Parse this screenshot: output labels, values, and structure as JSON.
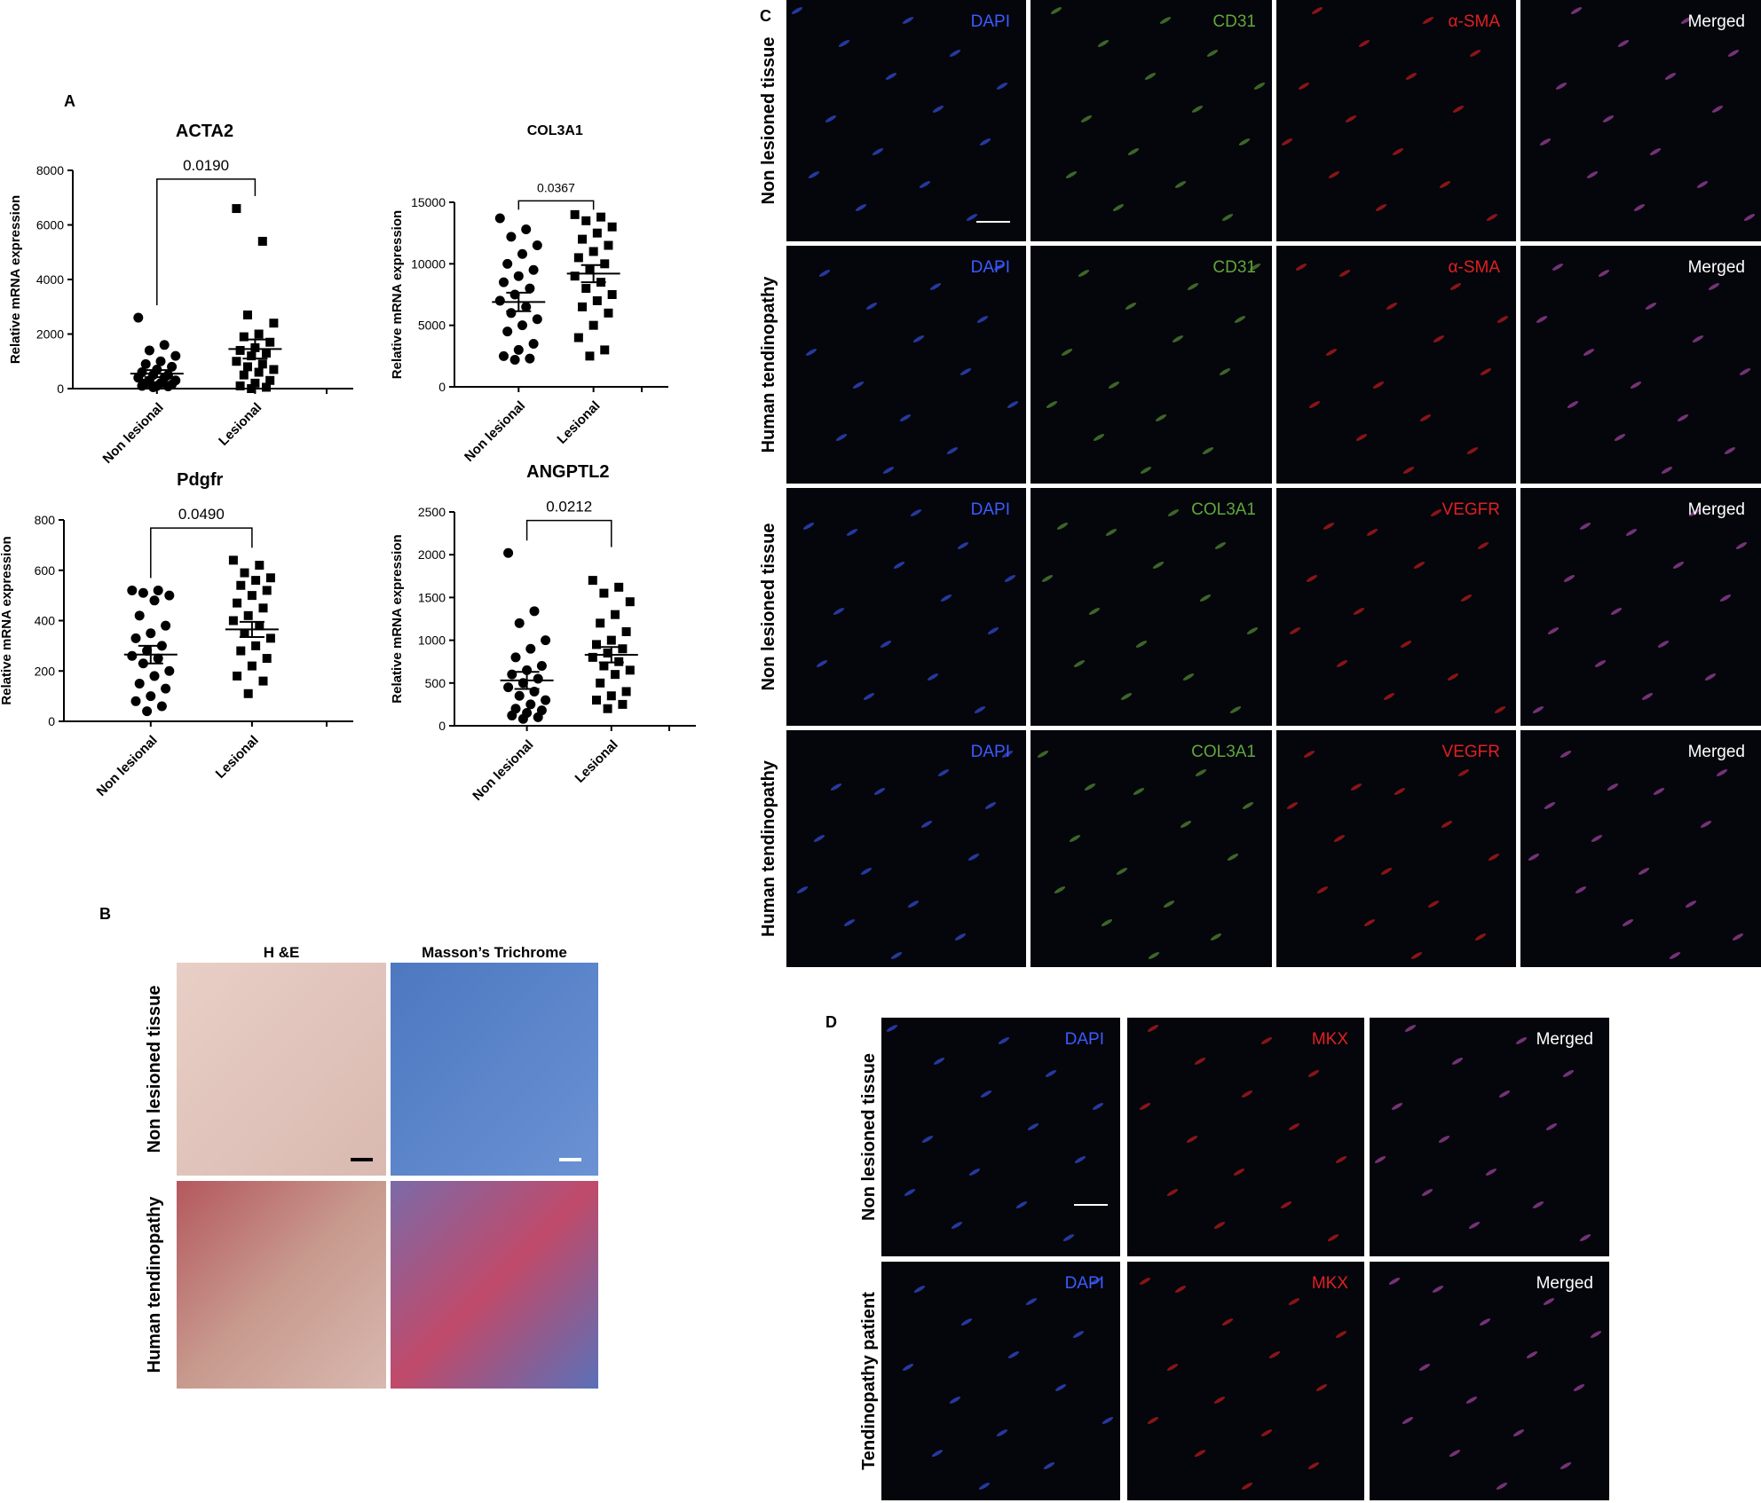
{
  "panel_labels": [
    "A",
    "B",
    "C",
    "D"
  ],
  "chart_data": [
    {
      "type": "scatter",
      "title": "ACTA2",
      "y_label": "Relative mRNA expression",
      "annotation": "0.0190",
      "categories": [
        "Non lesional",
        "Lesional"
      ],
      "ylim": [
        0,
        8000
      ],
      "yticks": [
        0,
        2000,
        4000,
        6000,
        8000
      ],
      "groups": [
        {
          "marker": "circle",
          "color": "#000000",
          "mean": 550,
          "sem": 130,
          "values": [
            2600,
            1600,
            1400,
            1200,
            1000,
            900,
            800,
            700,
            600,
            500,
            500,
            400,
            400,
            300,
            300,
            200,
            200,
            150,
            100,
            100,
            80,
            50
          ]
        },
        {
          "marker": "square",
          "color": "#000000",
          "mean": 1450,
          "sem": 350,
          "values": [
            6600,
            5400,
            2700,
            2400,
            2000,
            1900,
            1700,
            1500,
            1400,
            1300,
            1200,
            1000,
            900,
            800,
            700,
            600,
            500,
            300,
            200,
            100,
            50,
            0
          ]
        }
      ]
    },
    {
      "type": "scatter",
      "title": "COL3A1",
      "y_label": "Relative mRNA expression",
      "annotation": "0.0367",
      "categories": [
        "Non lesional",
        "Lesional"
      ],
      "ylim": [
        0,
        15000
      ],
      "yticks": [
        0,
        5000,
        10000,
        15000
      ],
      "groups": [
        {
          "marker": "circle",
          "color": "#000000",
          "mean": 6900,
          "sem": 750,
          "values": [
            13700,
            12800,
            12200,
            11500,
            10800,
            10000,
            9500,
            9000,
            8500,
            8000,
            7500,
            7000,
            6500,
            6000,
            5500,
            5000,
            4500,
            3500,
            3000,
            2500,
            2300,
            2200
          ]
        },
        {
          "marker": "square",
          "color": "#000000",
          "mean": 9200,
          "sem": 700,
          "values": [
            14000,
            13800,
            13500,
            13000,
            12500,
            12000,
            11500,
            11000,
            10500,
            10000,
            9500,
            9000,
            8500,
            8000,
            7500,
            7000,
            6500,
            6000,
            5000,
            4000,
            3000,
            2500
          ]
        }
      ]
    },
    {
      "type": "scatter",
      "title": "Pdgfr",
      "y_label": "Relative mRNA expression",
      "annotation": "0.0490",
      "categories": [
        "Non lesional",
        "Lesional"
      ],
      "ylim": [
        0,
        800
      ],
      "yticks": [
        0,
        200,
        400,
        600,
        800
      ],
      "groups": [
        {
          "marker": "circle",
          "color": "#000000",
          "mean": 265,
          "sem": 35,
          "values": [
            520,
            520,
            510,
            500,
            480,
            420,
            380,
            350,
            330,
            300,
            280,
            260,
            250,
            230,
            200,
            180,
            150,
            130,
            100,
            80,
            60,
            40
          ]
        },
        {
          "marker": "square",
          "color": "#000000",
          "mean": 365,
          "sem": 30,
          "values": [
            640,
            620,
            590,
            570,
            560,
            540,
            520,
            500,
            470,
            450,
            420,
            400,
            380,
            350,
            330,
            300,
            280,
            250,
            220,
            180,
            160,
            110
          ]
        }
      ]
    },
    {
      "type": "scatter",
      "title": "ANGPTL2",
      "y_label": "Relative mRNA expression",
      "annotation": "0.0212",
      "categories": [
        "Non lesional",
        "Lesional"
      ],
      "ylim": [
        0,
        2500
      ],
      "yticks": [
        0,
        500,
        1000,
        1500,
        2000,
        2500
      ],
      "groups": [
        {
          "marker": "circle",
          "color": "#000000",
          "mean": 530,
          "sem": 100,
          "values": [
            2020,
            1340,
            1200,
            1000,
            900,
            800,
            700,
            650,
            600,
            550,
            500,
            450,
            400,
            350,
            300,
            250,
            200,
            180,
            150,
            120,
            100,
            80
          ]
        },
        {
          "marker": "square",
          "color": "#000000",
          "mean": 830,
          "sem": 90,
          "values": [
            1700,
            1620,
            1550,
            1450,
            1300,
            1200,
            1100,
            1000,
            950,
            900,
            850,
            800,
            750,
            700,
            650,
            600,
            500,
            400,
            350,
            300,
            250,
            200
          ]
        }
      ]
    }
  ],
  "panel_b": {
    "columns": [
      "H &E",
      "Masson’s Trichrome"
    ],
    "rows": [
      "Non lesioned tissue",
      "Human tendinopathy"
    ]
  },
  "panel_c": {
    "rows": [
      {
        "label": "Non lesioned tissue",
        "channels": [
          {
            "name": "DAPI",
            "color": "#3a5cff"
          },
          {
            "name": "CD31",
            "color": "#5fa83a"
          },
          {
            "name": "α-SMA",
            "color": "#e02020"
          },
          {
            "name": "Merged",
            "color": "#ffffff"
          }
        ]
      },
      {
        "label": "Human tendinopathy",
        "channels": [
          {
            "name": "DAPI",
            "color": "#3a5cff"
          },
          {
            "name": "CD31",
            "color": "#5fa83a"
          },
          {
            "name": "α-SMA",
            "color": "#e02020"
          },
          {
            "name": "Merged",
            "color": "#ffffff"
          }
        ]
      },
      {
        "label": "Non lesioned tissue",
        "channels": [
          {
            "name": "DAPI",
            "color": "#3a5cff"
          },
          {
            "name": "COL3A1",
            "color": "#5fa83a"
          },
          {
            "name": "VEGFR",
            "color": "#e02020"
          },
          {
            "name": "Merged",
            "color": "#ffffff"
          }
        ]
      },
      {
        "label": "Human tendinopathy",
        "channels": [
          {
            "name": "DAPI",
            "color": "#3a5cff"
          },
          {
            "name": "COL3A1",
            "color": "#5fa83a"
          },
          {
            "name": "VEGFR",
            "color": "#e02020"
          },
          {
            "name": "Merged",
            "color": "#ffffff"
          }
        ]
      }
    ]
  },
  "panel_d": {
    "rows": [
      {
        "label": "Non lesioned tissue",
        "channels": [
          {
            "name": "DAPI",
            "color": "#3a5cff"
          },
          {
            "name": "MKX",
            "color": "#e02020"
          },
          {
            "name": "Merged",
            "color": "#ffffff"
          }
        ]
      },
      {
        "label": "Tendinopathy patient",
        "channels": [
          {
            "name": "DAPI",
            "color": "#3a5cff"
          },
          {
            "name": "MKX",
            "color": "#e02020"
          },
          {
            "name": "Merged",
            "color": "#ffffff"
          }
        ]
      }
    ]
  }
}
